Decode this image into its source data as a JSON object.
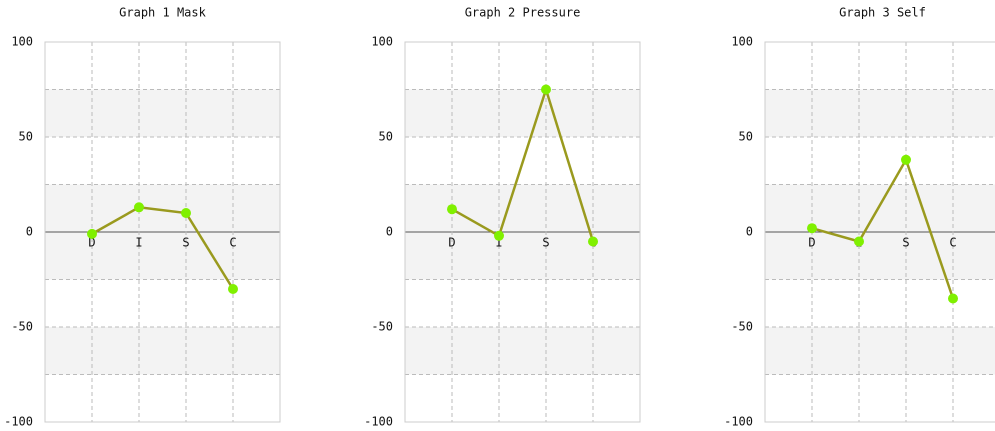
{
  "chart_data": [
    {
      "type": "line",
      "title": "Graph 1 Mask",
      "categories": [
        "D",
        "I",
        "S",
        "C"
      ],
      "values": [
        -1,
        13,
        10,
        -30
      ],
      "color": "#9a9a1e",
      "marker_color": "#80f000",
      "ylim": [
        -100,
        100
      ],
      "yticks": [
        100,
        50,
        0,
        -50,
        -100
      ],
      "grid": true
    },
    {
      "type": "line",
      "title": "Graph 2 Pressure",
      "categories": [
        "D",
        "I",
        "S",
        "C"
      ],
      "values": [
        12,
        -2,
        75,
        -5
      ],
      "color": "#9a9a1e",
      "marker_color": "#80f000",
      "ylim": [
        -100,
        100
      ],
      "yticks": [
        100,
        50,
        0,
        -50,
        -100
      ],
      "grid": true
    },
    {
      "type": "line",
      "title": "Graph 3 Self",
      "categories": [
        "D",
        "I",
        "S",
        "C"
      ],
      "values": [
        2,
        -5,
        38,
        -35
      ],
      "color": "#9a9a1e",
      "marker_color": "#80f000",
      "ylim": [
        -100,
        100
      ],
      "yticks": [
        100,
        50,
        0,
        -50,
        -100
      ],
      "grid": true
    }
  ]
}
